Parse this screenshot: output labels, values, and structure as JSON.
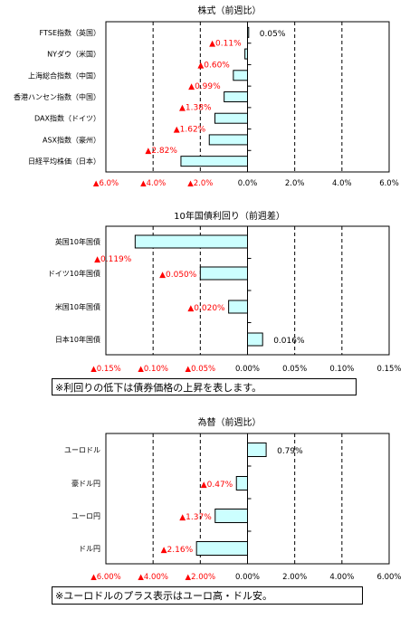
{
  "chart_data": [
    {
      "type": "bar",
      "orientation": "horizontal",
      "title": "株式（前週比）",
      "categories": [
        "FTSE指数（英国）",
        "NYダウ（米国）",
        "上海総合指数（中国）",
        "香港ハンセン指数（中国）",
        "DAX指数（ドイツ）",
        "ASX指数（豪州）",
        "日経平均株価（日本）"
      ],
      "values": [
        0.05,
        -0.11,
        -0.6,
        -0.99,
        -1.38,
        -1.62,
        -2.82
      ],
      "data_labels": [
        "0.05%",
        "▲0.11%",
        "▲0.60%",
        "▲0.99%",
        "▲1.38%",
        "▲1.62%",
        "▲2.82%"
      ],
      "xlim": [
        -6,
        6
      ],
      "ticks": [
        -6,
        -4,
        -2,
        0,
        2,
        4,
        6
      ],
      "tick_labels": [
        "▲6.0%",
        "▲4.0%",
        "▲2.0%",
        "0.0%",
        "2.0%",
        "4.0%",
        "6.0%"
      ],
      "grid": "vertical dashed",
      "bar_color": "#ccffff"
    },
    {
      "type": "bar",
      "orientation": "horizontal",
      "title": "10年国債利回り（前週差）",
      "categories": [
        "英国10年国債",
        "ドイツ10年国債",
        "米国10年国債",
        "日本10年国債"
      ],
      "values": [
        -0.119,
        -0.05,
        -0.02,
        0.016
      ],
      "data_labels": [
        "▲0.119%",
        "▲0.050%",
        "▲0.020%",
        "0.016%"
      ],
      "xlim": [
        -0.15,
        0.15
      ],
      "ticks": [
        -0.15,
        -0.1,
        -0.05,
        0,
        0.05,
        0.1,
        0.15
      ],
      "tick_labels": [
        "▲0.15%",
        "▲0.10%",
        "▲0.05%",
        "0.00%",
        "0.05%",
        "0.10%",
        "0.15%"
      ],
      "grid": "vertical dashed",
      "bar_color": "#ccffff"
    },
    {
      "type": "bar",
      "orientation": "horizontal",
      "title": "為替（前週比）",
      "categories": [
        "ユーロドル",
        "豪ドル円",
        "ユーロ円",
        "ドル円"
      ],
      "values": [
        0.79,
        -0.47,
        -1.37,
        -2.16
      ],
      "data_labels": [
        "0.79%",
        "▲0.47%",
        "▲1.37%",
        "▲2.16%"
      ],
      "xlim": [
        -6,
        6
      ],
      "ticks": [
        -6,
        -4,
        -2,
        0,
        2,
        4,
        6
      ],
      "tick_labels": [
        "▲6.00%",
        "▲4.00%",
        "▲2.00%",
        "0.00%",
        "2.00%",
        "4.00%",
        "6.00%"
      ],
      "grid": "vertical dashed",
      "bar_color": "#ccffff"
    }
  ],
  "notes": {
    "bond": "※利回りの低下は債券価格の上昇を表します。",
    "fx": "※ユーロドルのプラス表示はユーロ高・ドル安。"
  },
  "colors": {
    "negative_label": "#ff0000",
    "positive_label": "#000000",
    "bar_fill": "#ccffff"
  }
}
